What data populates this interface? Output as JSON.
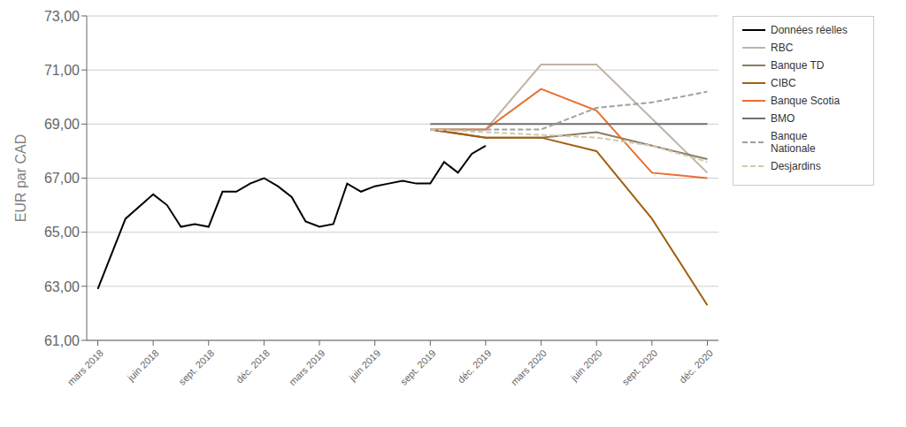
{
  "chart_data": {
    "type": "line",
    "y_label": "EUR par CAD",
    "xlim": [
      -0.2,
      11.2
    ],
    "xticks": [
      {
        "value": 0,
        "label": "mars 2018"
      },
      {
        "value": 1,
        "label": "juin 2018"
      },
      {
        "value": 2,
        "label": "sept. 2018"
      },
      {
        "value": 3,
        "label": "déc. 2018"
      },
      {
        "value": 4,
        "label": "mars 2019"
      },
      {
        "value": 5,
        "label": "juin 2019"
      },
      {
        "value": 6,
        "label": "sept. 2019"
      },
      {
        "value": 7,
        "label": "déc. 2019"
      },
      {
        "value": 8,
        "label": "mars 2020"
      },
      {
        "value": 9,
        "label": "juin 2020"
      },
      {
        "value": 10,
        "label": "sept. 2020"
      },
      {
        "value": 11,
        "label": "déc. 2020"
      }
    ],
    "ylim": [
      61.0,
      73.0
    ],
    "yticks": [
      {
        "value": 61.0,
        "label": "61,00"
      },
      {
        "value": 63.0,
        "label": "63,00"
      },
      {
        "value": 65.0,
        "label": "65,00"
      },
      {
        "value": 67.0,
        "label": "67,00"
      },
      {
        "value": 69.0,
        "label": "69,00"
      },
      {
        "value": 71.0,
        "label": "71,00"
      },
      {
        "value": 73.0,
        "label": "73,00"
      }
    ],
    "grid": "y",
    "legend": "right",
    "series": [
      {
        "name": "Données réelles",
        "color": "#000000",
        "line_style": "solid",
        "x": [
          0,
          0.5,
          1.0,
          1.25,
          1.5,
          1.75,
          2.0,
          2.25,
          2.5,
          2.75,
          3.0,
          3.25,
          3.5,
          3.75,
          4.0,
          4.25,
          4.5,
          4.75,
          5.0,
          5.25,
          5.5,
          5.75,
          6.0,
          6.25,
          6.5,
          6.75,
          7.0
        ],
        "values": [
          62.9,
          65.5,
          66.4,
          66.0,
          65.2,
          65.3,
          65.2,
          66.5,
          66.5,
          66.8,
          67.0,
          66.7,
          66.3,
          65.4,
          65.2,
          65.3,
          66.8,
          66.5,
          66.7,
          66.8,
          66.9,
          66.8,
          66.8,
          67.6,
          67.2,
          67.9,
          68.2
        ]
      },
      {
        "name": "RBC",
        "color": "#bfb5a5",
        "line_style": "solid",
        "x": [
          6,
          7,
          8,
          9,
          10,
          11
        ],
        "values": [
          68.8,
          68.8,
          71.2,
          71.2,
          69.2,
          67.2
        ]
      },
      {
        "name": "Banque TD",
        "color": "#8a7d60",
        "line_style": "solid",
        "x": [
          6,
          7,
          8,
          9,
          10,
          11
        ],
        "values": [
          68.8,
          68.5,
          68.5,
          68.7,
          68.2,
          67.7
        ]
      },
      {
        "name": "CIBC",
        "color": "#a06010",
        "line_style": "solid",
        "x": [
          6,
          7,
          8,
          9,
          10,
          11
        ],
        "values": [
          68.8,
          68.5,
          68.5,
          68.0,
          65.5,
          62.3
        ]
      },
      {
        "name": "Banque Scotia",
        "color": "#e87030",
        "line_style": "solid",
        "x": [
          6,
          7,
          8,
          9,
          10,
          11
        ],
        "values": [
          68.8,
          68.8,
          70.3,
          69.5,
          67.2,
          67.0
        ]
      },
      {
        "name": "BMO",
        "color": "#707070",
        "line_style": "solid",
        "x": [
          6,
          7,
          8,
          9,
          10,
          11
        ],
        "values": [
          69.0,
          69.0,
          69.0,
          69.0,
          69.0,
          69.0
        ]
      },
      {
        "name": "Banque\nNationale",
        "color": "#a0a0a0",
        "line_style": "dashed",
        "x": [
          6,
          7,
          8,
          9,
          10,
          11
        ],
        "values": [
          68.8,
          68.8,
          68.8,
          69.6,
          69.8,
          70.2
        ]
      },
      {
        "name": "Desjardins",
        "color": "#d0c8b0",
        "line_style": "dashed",
        "x": [
          6,
          7,
          8,
          9,
          10,
          11
        ],
        "values": [
          68.8,
          68.7,
          68.6,
          68.5,
          68.2,
          67.6
        ]
      }
    ]
  }
}
